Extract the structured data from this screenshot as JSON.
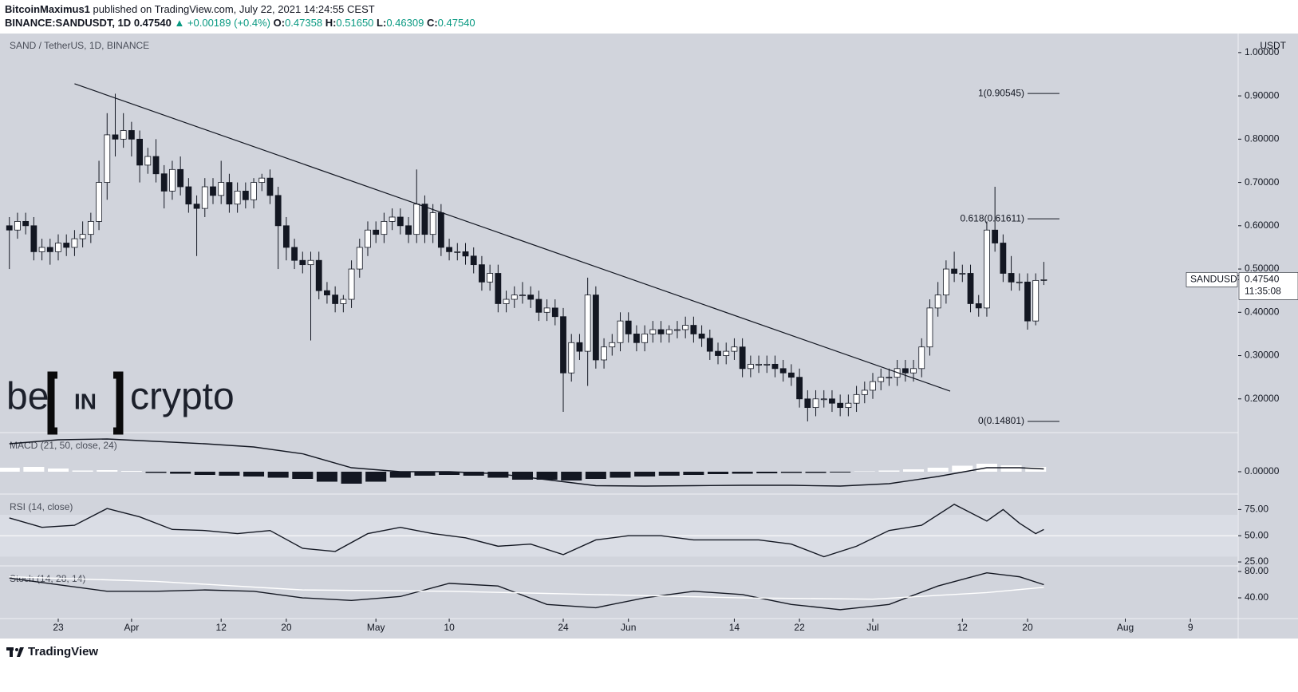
{
  "header": {
    "author": "BitcoinMaximus1",
    "published": "published on TradingView.com, July 22, 2021 14:24:55 CEST",
    "symbol": "BINANCE:SANDUSDT, 1D",
    "last": "0.47540",
    "change": "▲ +0.00189 (+0.4%)",
    "ohlc": [
      {
        "label": "O:",
        "value": "0.47358"
      },
      {
        "label": "H:",
        "value": "0.51650"
      },
      {
        "label": "L:",
        "value": "0.46309"
      },
      {
        "label": "C:",
        "value": "0.47540"
      }
    ]
  },
  "watermark": [
    "be",
    "IN",
    "crypto"
  ],
  "footer": "TradingView",
  "chart_data": [
    {
      "type": "candlestick",
      "title": "SAND / TetherUS, 1D, BINANCE",
      "y_axis_label": "USDT",
      "x": [
        -6,
        -5,
        -4,
        -3,
        -2,
        -1,
        0,
        1,
        2,
        3,
        4,
        5,
        6,
        7,
        8,
        9,
        10,
        11,
        12,
        13,
        14,
        15,
        16,
        17,
        18,
        19,
        20,
        21,
        22,
        23,
        24,
        25,
        26,
        27,
        28,
        29,
        30,
        31,
        32,
        33,
        34,
        35,
        36,
        37,
        38,
        39,
        40,
        41,
        42,
        43,
        44,
        45,
        46,
        47,
        48,
        49,
        50,
        51,
        52,
        53,
        54,
        55,
        56,
        57,
        58,
        59,
        60,
        61,
        62,
        63,
        64,
        65,
        66,
        67,
        68,
        69,
        70,
        71,
        72,
        73,
        74,
        75,
        76,
        77,
        78,
        79,
        80,
        81,
        82,
        83,
        84,
        85,
        86,
        87,
        88,
        89,
        90,
        91,
        92,
        93,
        94,
        95,
        96,
        97,
        98,
        99,
        100,
        101,
        102,
        103,
        104,
        105,
        106,
        107,
        108,
        109,
        110,
        111,
        112,
        113,
        114,
        115,
        116,
        117,
        118,
        119,
        120,
        121
      ],
      "open": [
        0.6,
        0.59,
        0.61,
        0.6,
        0.54,
        0.55,
        0.54,
        0.56,
        0.55,
        0.57,
        0.58,
        0.61,
        0.7,
        0.81,
        0.8,
        0.82,
        0.8,
        0.74,
        0.76,
        0.72,
        0.68,
        0.73,
        0.69,
        0.65,
        0.64,
        0.69,
        0.67,
        0.7,
        0.65,
        0.68,
        0.66,
        0.7,
        0.71,
        0.67,
        0.6,
        0.55,
        0.52,
        0.51,
        0.52,
        0.45,
        0.44,
        0.42,
        0.43,
        0.5,
        0.55,
        0.59,
        0.58,
        0.61,
        0.62,
        0.6,
        0.58,
        0.65,
        0.58,
        0.63,
        0.55,
        0.54,
        0.54,
        0.53,
        0.51,
        0.47,
        0.49,
        0.42,
        0.43,
        0.44,
        0.44,
        0.43,
        0.4,
        0.41,
        0.39,
        0.26,
        0.33,
        0.31,
        0.44,
        0.29,
        0.32,
        0.33,
        0.38,
        0.35,
        0.33,
        0.35,
        0.36,
        0.35,
        0.36,
        0.36,
        0.37,
        0.35,
        0.34,
        0.31,
        0.3,
        0.31,
        0.32,
        0.27,
        0.28,
        0.28,
        0.28,
        0.27,
        0.26,
        0.25,
        0.2,
        0.18,
        0.2,
        0.2,
        0.19,
        0.18,
        0.19,
        0.21,
        0.22,
        0.24,
        0.25,
        0.25,
        0.27,
        0.26,
        0.27,
        0.32,
        0.41,
        0.44,
        0.5,
        0.49,
        0.49,
        0.42,
        0.41,
        0.59,
        0.56,
        0.49,
        0.47,
        0.47,
        0.38,
        0.47358
      ],
      "high": [
        0.62,
        0.63,
        0.63,
        0.62,
        0.57,
        0.57,
        0.58,
        0.58,
        0.59,
        0.61,
        0.63,
        0.75,
        0.86,
        0.905,
        0.86,
        0.84,
        0.82,
        0.78,
        0.8,
        0.74,
        0.75,
        0.76,
        0.71,
        0.67,
        0.71,
        0.71,
        0.75,
        0.72,
        0.7,
        0.7,
        0.71,
        0.72,
        0.73,
        0.69,
        0.62,
        0.57,
        0.54,
        0.54,
        0.54,
        0.47,
        0.46,
        0.44,
        0.52,
        0.57,
        0.61,
        0.61,
        0.63,
        0.64,
        0.64,
        0.62,
        0.73,
        0.67,
        0.65,
        0.65,
        0.57,
        0.56,
        0.56,
        0.55,
        0.53,
        0.51,
        0.51,
        0.45,
        0.46,
        0.47,
        0.46,
        0.45,
        0.43,
        0.43,
        0.41,
        0.35,
        0.35,
        0.48,
        0.46,
        0.34,
        0.35,
        0.4,
        0.4,
        0.37,
        0.37,
        0.38,
        0.38,
        0.37,
        0.38,
        0.39,
        0.39,
        0.37,
        0.36,
        0.33,
        0.33,
        0.34,
        0.34,
        0.3,
        0.3,
        0.3,
        0.3,
        0.29,
        0.28,
        0.27,
        0.22,
        0.22,
        0.22,
        0.22,
        0.21,
        0.21,
        0.23,
        0.24,
        0.26,
        0.27,
        0.27,
        0.29,
        0.29,
        0.29,
        0.34,
        0.43,
        0.47,
        0.52,
        0.54,
        0.51,
        0.51,
        0.44,
        0.61,
        0.69,
        0.58,
        0.53,
        0.49,
        0.49,
        0.49,
        0.5165
      ],
      "low": [
        0.5,
        0.57,
        0.58,
        0.52,
        0.52,
        0.51,
        0.52,
        0.53,
        0.53,
        0.55,
        0.56,
        0.59,
        0.66,
        0.76,
        0.78,
        0.76,
        0.7,
        0.72,
        0.7,
        0.64,
        0.66,
        0.67,
        0.63,
        0.53,
        0.62,
        0.65,
        0.65,
        0.63,
        0.63,
        0.64,
        0.64,
        0.68,
        0.65,
        0.5,
        0.52,
        0.5,
        0.49,
        0.335,
        0.43,
        0.42,
        0.4,
        0.4,
        0.41,
        0.48,
        0.53,
        0.56,
        0.56,
        0.59,
        0.58,
        0.56,
        0.56,
        0.56,
        0.56,
        0.53,
        0.52,
        0.52,
        0.51,
        0.49,
        0.45,
        0.45,
        0.4,
        0.4,
        0.41,
        0.42,
        0.41,
        0.38,
        0.38,
        0.37,
        0.17,
        0.24,
        0.29,
        0.23,
        0.27,
        0.27,
        0.3,
        0.31,
        0.33,
        0.31,
        0.31,
        0.33,
        0.33,
        0.33,
        0.34,
        0.34,
        0.33,
        0.32,
        0.29,
        0.28,
        0.28,
        0.29,
        0.25,
        0.25,
        0.26,
        0.26,
        0.25,
        0.24,
        0.23,
        0.18,
        0.148,
        0.16,
        0.18,
        0.17,
        0.16,
        0.16,
        0.17,
        0.19,
        0.2,
        0.22,
        0.23,
        0.23,
        0.24,
        0.24,
        0.25,
        0.3,
        0.39,
        0.42,
        0.47,
        0.47,
        0.4,
        0.39,
        0.39,
        0.54,
        0.47,
        0.45,
        0.45,
        0.36,
        0.37,
        0.46309
      ],
      "close": [
        0.59,
        0.61,
        0.6,
        0.54,
        0.55,
        0.54,
        0.56,
        0.55,
        0.57,
        0.58,
        0.61,
        0.7,
        0.81,
        0.8,
        0.82,
        0.8,
        0.74,
        0.76,
        0.72,
        0.68,
        0.73,
        0.69,
        0.65,
        0.64,
        0.69,
        0.67,
        0.7,
        0.65,
        0.68,
        0.66,
        0.7,
        0.71,
        0.67,
        0.6,
        0.55,
        0.52,
        0.51,
        0.52,
        0.45,
        0.44,
        0.42,
        0.43,
        0.5,
        0.55,
        0.59,
        0.58,
        0.61,
        0.62,
        0.6,
        0.58,
        0.65,
        0.58,
        0.63,
        0.55,
        0.54,
        0.54,
        0.53,
        0.51,
        0.47,
        0.49,
        0.42,
        0.43,
        0.44,
        0.44,
        0.43,
        0.4,
        0.41,
        0.39,
        0.26,
        0.33,
        0.31,
        0.44,
        0.29,
        0.32,
        0.33,
        0.38,
        0.35,
        0.33,
        0.35,
        0.36,
        0.35,
        0.36,
        0.36,
        0.37,
        0.35,
        0.34,
        0.31,
        0.3,
        0.31,
        0.32,
        0.27,
        0.28,
        0.28,
        0.28,
        0.27,
        0.26,
        0.25,
        0.2,
        0.18,
        0.2,
        0.2,
        0.19,
        0.18,
        0.19,
        0.21,
        0.22,
        0.24,
        0.25,
        0.25,
        0.27,
        0.26,
        0.27,
        0.32,
        0.41,
        0.44,
        0.5,
        0.49,
        0.49,
        0.42,
        0.41,
        0.59,
        0.56,
        0.49,
        0.47,
        0.47,
        0.38,
        0.47358,
        0.4754
      ],
      "up_color": "#ffffff",
      "down_color": "#131722",
      "ylim": [
        0.124,
        1.044
      ],
      "yticks": [
        {
          "value": 0.2,
          "label": "0.20000"
        },
        {
          "value": 0.3,
          "label": "0.30000"
        },
        {
          "value": 0.4,
          "label": "0.40000"
        },
        {
          "value": 0.5,
          "label": "0.50000"
        },
        {
          "value": 0.6,
          "label": "0.60000"
        },
        {
          "value": 0.7,
          "label": "0.70000"
        },
        {
          "value": 0.8,
          "label": "0.80000"
        },
        {
          "value": 0.9,
          "label": "0.90000"
        },
        {
          "value": 1.0,
          "label": "1.00000"
        }
      ],
      "xticks": [
        {
          "value": 0,
          "label": "23"
        },
        {
          "value": 9,
          "label": "Apr"
        },
        {
          "value": 20,
          "label": "12"
        },
        {
          "value": 28,
          "label": "20"
        },
        {
          "value": 39,
          "label": "May"
        },
        {
          "value": 48,
          "label": "10"
        },
        {
          "value": 62,
          "label": "24"
        },
        {
          "value": 70,
          "label": "Jun"
        },
        {
          "value": 83,
          "label": "14"
        },
        {
          "value": 91,
          "label": "22"
        },
        {
          "value": 100,
          "label": "Jul"
        },
        {
          "value": 111,
          "label": "12"
        },
        {
          "value": 119,
          "label": "20"
        },
        {
          "value": 131,
          "label": "Aug"
        },
        {
          "value": 139,
          "label": "9"
        }
      ],
      "trendline": {
        "x": [
          2,
          109.5
        ],
        "y": [
          0.928,
          0.218
        ]
      },
      "levels": [
        {
          "value": 0.90545,
          "label": "1(0.90545)"
        },
        {
          "value": 0.61611,
          "label": "0.618(0.61611)"
        },
        {
          "value": 0.14801,
          "label": "0(0.14801)"
        }
      ],
      "last_price": {
        "value": 0.4754,
        "label": "0.47540"
      },
      "symbol_label": "SANDUSDT",
      "countdown": "11:35:08"
    },
    {
      "type": "combo",
      "title": "MACD (21, 50, close, 24)",
      "ylim": [
        -0.054,
        0.096
      ],
      "yticks": [
        {
          "value": 0,
          "label": "0.00000"
        }
      ],
      "series": [
        {
          "type": "bar",
          "color": "#ffffff",
          "negative_color": "#131722",
          "x": [
            -6,
            -3,
            0,
            3,
            6,
            9,
            12,
            15,
            18,
            21,
            24,
            27,
            30,
            33,
            36,
            39,
            42,
            45,
            48,
            51,
            54,
            57,
            60,
            63,
            66,
            69,
            72,
            75,
            78,
            81,
            84,
            87,
            90,
            93,
            96,
            99,
            102,
            105,
            108,
            111,
            114,
            117,
            120
          ],
          "values": [
            0.01,
            0.012,
            0.008,
            0.003,
            0.004,
            0.002,
            -0.003,
            -0.005,
            -0.008,
            -0.01,
            -0.012,
            -0.015,
            -0.018,
            -0.025,
            -0.03,
            -0.025,
            -0.015,
            -0.01,
            -0.008,
            -0.01,
            -0.015,
            -0.02,
            -0.02,
            -0.022,
            -0.018,
            -0.015,
            -0.012,
            -0.01,
            -0.008,
            -0.006,
            -0.005,
            -0.004,
            -0.003,
            -0.003,
            -0.002,
            0.001,
            0.003,
            0.006,
            0.01,
            0.015,
            0.02,
            0.016,
            0.012
          ]
        },
        {
          "type": "line",
          "color": "#131722",
          "x": [
            -6,
            0,
            6,
            12,
            18,
            24,
            30,
            36,
            42,
            48,
            54,
            60,
            66,
            72,
            78,
            84,
            90,
            96,
            102,
            108,
            114,
            118,
            121
          ],
          "values": [
            0.07,
            0.08,
            0.082,
            0.076,
            0.07,
            0.062,
            0.045,
            0.01,
            0.0,
            0.0,
            -0.005,
            -0.02,
            -0.035,
            -0.036,
            -0.035,
            -0.034,
            -0.034,
            -0.036,
            -0.03,
            -0.012,
            0.01,
            0.01,
            0.007
          ]
        }
      ]
    },
    {
      "type": "line",
      "title": "RSI (14, close)",
      "ylim": [
        22,
        89
      ],
      "band": [
        30,
        70
      ],
      "yticks": [
        {
          "value": 75,
          "label": "75.00"
        },
        {
          "value": 50,
          "label": "50.00"
        },
        {
          "value": 25,
          "label": "25.00"
        }
      ],
      "series": [
        {
          "color": "#131722",
          "x": [
            -6,
            -2,
            2,
            6,
            10,
            14,
            18,
            22,
            26,
            30,
            34,
            38,
            42,
            46,
            50,
            54,
            58,
            62,
            66,
            70,
            74,
            78,
            82,
            86,
            90,
            94,
            98,
            102,
            106,
            110,
            114,
            116,
            118,
            120,
            121
          ],
          "values": [
            67,
            58,
            60,
            76,
            68,
            56,
            55,
            52,
            55,
            38,
            35,
            52,
            58,
            52,
            48,
            40,
            42,
            32,
            46,
            50,
            50,
            46,
            46,
            46,
            42,
            30,
            40,
            55,
            60,
            80,
            64,
            75,
            62,
            52,
            56
          ]
        }
      ]
    },
    {
      "type": "line",
      "title": "Stoch (14, 28, 14)",
      "ylim": [
        8.5,
        87.3
      ],
      "yticks": [
        {
          "value": 80,
          "label": "80.00"
        },
        {
          "value": 40,
          "label": "40.00"
        }
      ],
      "series": [
        {
          "color": "#131722",
          "x": [
            -6,
            0,
            6,
            12,
            18,
            24,
            30,
            36,
            42,
            48,
            54,
            60,
            66,
            72,
            78,
            84,
            90,
            96,
            102,
            108,
            114,
            118,
            121
          ],
          "values": [
            70,
            60,
            50,
            50,
            52,
            50,
            40,
            36,
            42,
            62,
            58,
            30,
            25,
            40,
            50,
            45,
            30,
            22,
            30,
            58,
            78,
            72,
            60
          ]
        },
        {
          "color": "#ffffff",
          "x": [
            -6,
            12,
            30,
            48,
            66,
            84,
            100,
            114,
            121
          ],
          "values": [
            72,
            65,
            52,
            50,
            45,
            40,
            38,
            48,
            56
          ]
        }
      ]
    }
  ]
}
